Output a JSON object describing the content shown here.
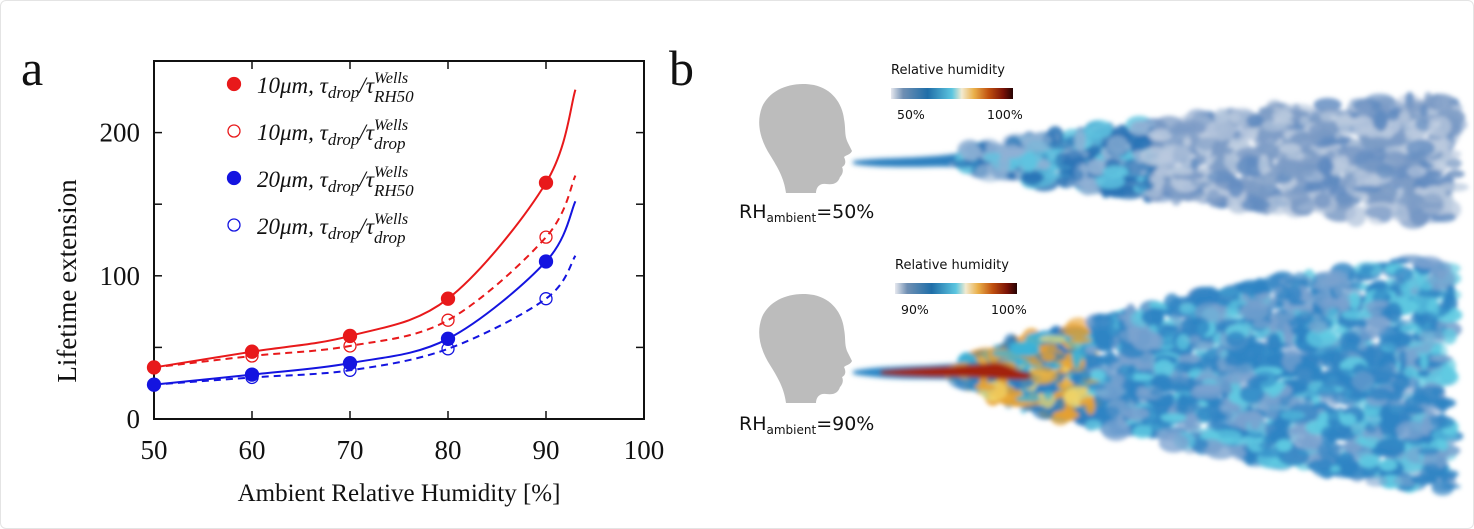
{
  "panel_a": {
    "label": "a"
  },
  "panel_b": {
    "label": "b",
    "cases": [
      {
        "rh_main": "RH",
        "rh_sub": "ambient",
        "rh_value": "=50%",
        "colorbar_title": "Relative humidity",
        "colorbar_min": "50%",
        "colorbar_max": "100%"
      },
      {
        "rh_main": "RH",
        "rh_sub": "ambient",
        "rh_value": "=90%",
        "colorbar_title": "Relative humidity",
        "colorbar_min": "90%",
        "colorbar_max": "100%"
      }
    ]
  },
  "chart_data": {
    "type": "scatter",
    "xlabel": "Ambient Relative Humidity [%]",
    "ylabel": "Lifetime extension",
    "xlim": [
      50,
      100
    ],
    "ylim": [
      0,
      250
    ],
    "xticks": [
      "50",
      "60",
      "70",
      "80",
      "90",
      "100"
    ],
    "yticks": [
      "0",
      "100",
      "200"
    ],
    "y_minor_ticks": [
      50,
      150
    ],
    "grid": false,
    "legend_placement": "top-left",
    "x": [
      50,
      60,
      70,
      80,
      90
    ],
    "series": [
      {
        "name_prefix": "10μm, τ",
        "name_sub": "drop",
        "name_sup": "Wells",
        "name_sub2": "RH50",
        "color": "#e8191b",
        "marker": "filled-circle",
        "line": "solid",
        "values": [
          36,
          47,
          58,
          84,
          165
        ],
        "fit_end": [
          93,
          230
        ]
      },
      {
        "name_prefix": "10μm, τ",
        "name_sub": "drop",
        "name_sup": "Wells",
        "name_sub2": "drop",
        "color": "#e8191b",
        "marker": "open-circle",
        "line": "dashed",
        "values": [
          36,
          44,
          51,
          69,
          127
        ],
        "fit_end": [
          93,
          170
        ]
      },
      {
        "name_prefix": "20μm, τ",
        "name_sub": "drop",
        "name_sup": "Wells",
        "name_sub2": "RH50",
        "color": "#1414e0",
        "marker": "filled-circle",
        "line": "solid",
        "values": [
          24,
          31,
          39,
          56,
          110
        ],
        "fit_end": [
          93,
          152
        ]
      },
      {
        "name_prefix": "20μm, τ",
        "name_sub": "drop",
        "name_sup": "Wells",
        "name_sub2": "drop",
        "color": "#1414e0",
        "marker": "open-circle",
        "line": "dashed",
        "values": [
          24,
          29,
          34,
          49,
          84
        ],
        "fit_end": [
          93,
          114
        ]
      }
    ]
  }
}
